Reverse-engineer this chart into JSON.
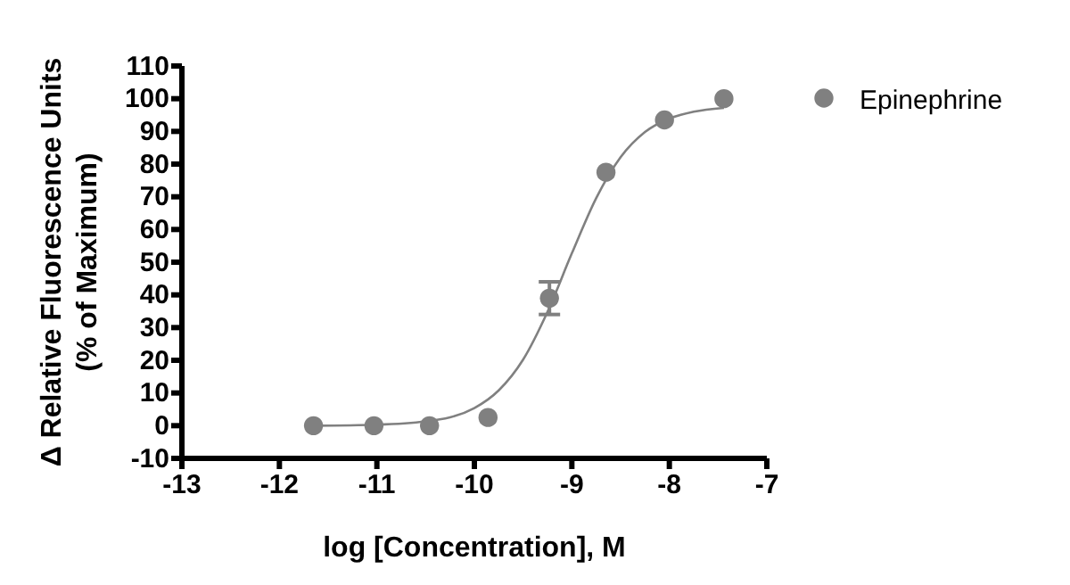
{
  "chart_data": {
    "type": "scatter",
    "xlabel": "log [Concentration], M",
    "ylabel": "Δ Relative Fluorescence Units\n(% of Maximum)",
    "xlim": [
      -13,
      -7
    ],
    "xticks": [
      -13,
      -12,
      -11,
      -10,
      -9,
      -8,
      -7
    ],
    "ylim": [
      -10,
      110
    ],
    "yticks": [
      -10,
      0,
      10,
      20,
      30,
      40,
      50,
      60,
      70,
      80,
      90,
      100,
      110
    ],
    "legend": "top right",
    "marker": "circle",
    "grid": false,
    "series": [
      {
        "name": "Epinephrine",
        "color": "#808080",
        "x": [
          -11.65,
          -11.03,
          -10.46,
          -9.86,
          -9.23,
          -8.65,
          -8.05,
          -7.44
        ],
        "values": [
          0,
          0,
          0,
          2.5,
          39,
          77.5,
          93.5,
          100
        ],
        "errors": [
          null,
          null,
          null,
          null,
          [
            34,
            44
          ],
          null,
          null,
          null
        ]
      },
      {
        "type": "line",
        "color": "#808080",
        "marker": "none",
        "x": [
          -11.65,
          -11,
          -10.5,
          -10,
          -9.75,
          -9.5,
          -9.25,
          -9,
          -8.75,
          -8.5,
          -8.25,
          -8,
          -7.75,
          -7.44
        ],
        "values": [
          0,
          0.3,
          1.3,
          5.4,
          10.8,
          20.2,
          34.8,
          52.7,
          69.6,
          82.1,
          89.8,
          93.9,
          96,
          97.2
        ]
      }
    ]
  }
}
